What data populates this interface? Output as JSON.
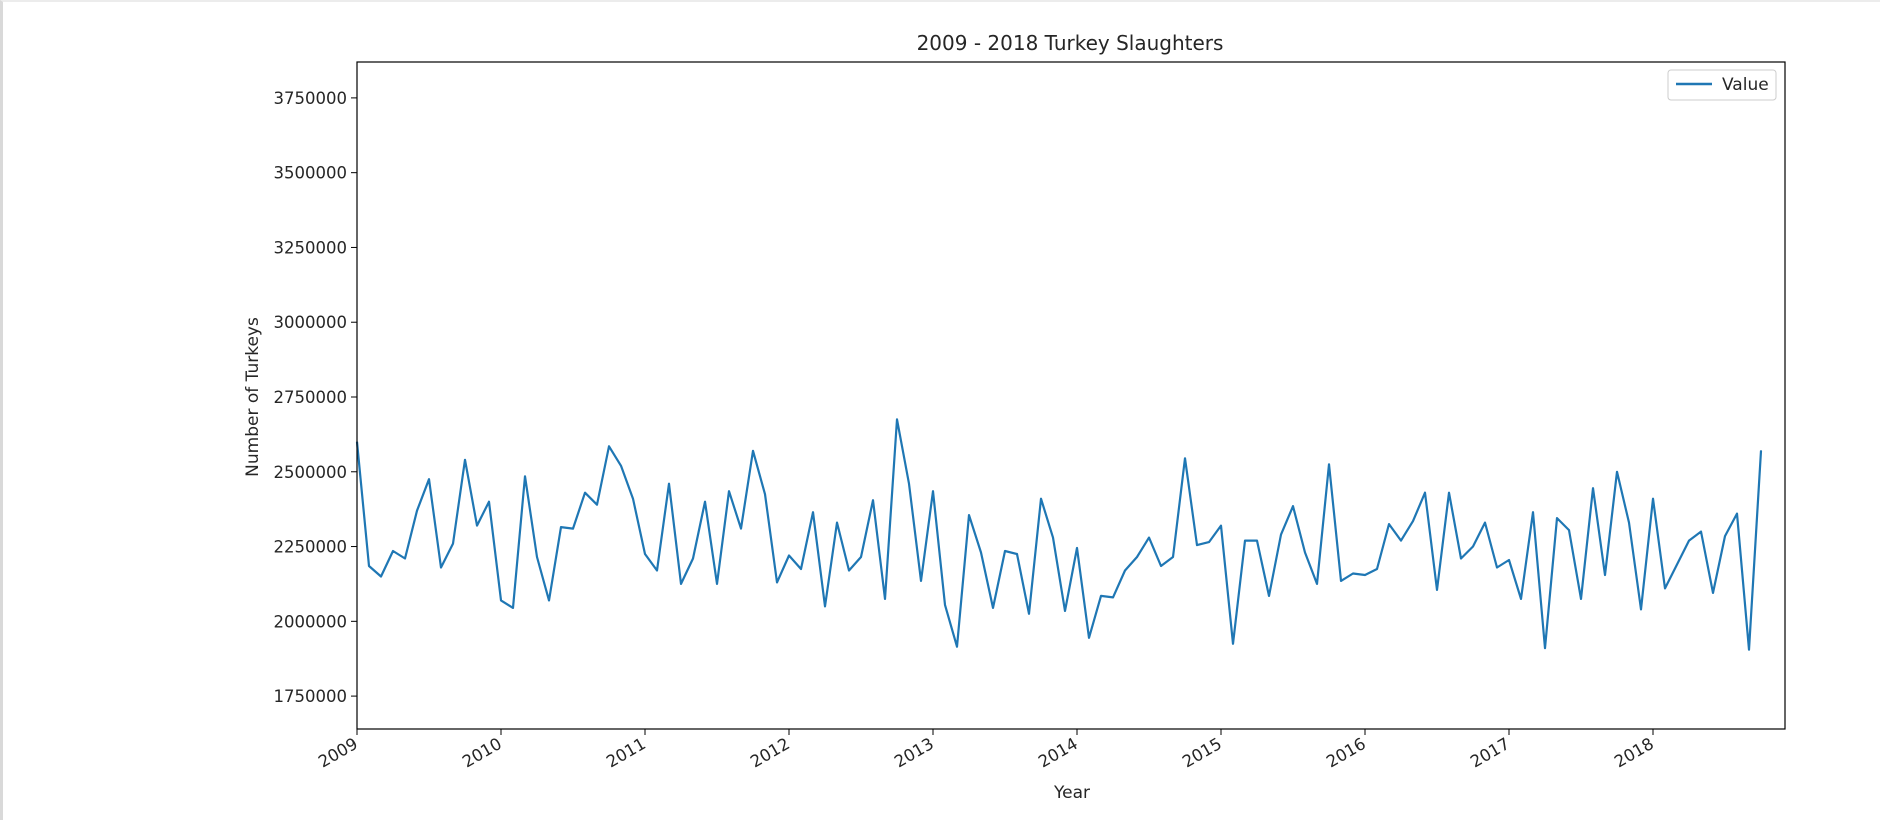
{
  "chart_data": {
    "type": "line",
    "title": "2009 - 2018 Turkey Slaughters",
    "xlabel": "Year",
    "ylabel": "Number of Turkeys",
    "legend": {
      "placement": "top-right",
      "entries": [
        "Value"
      ]
    },
    "grid": false,
    "x_ticks": [
      "2009",
      "2010",
      "2011",
      "2012",
      "2013",
      "2014",
      "2015",
      "2016",
      "2017",
      "2018"
    ],
    "y_ticks": [
      "1750000",
      "2000000",
      "2250000",
      "2500000",
      "2750000",
      "3000000",
      "3250000",
      "3500000",
      "3750000"
    ],
    "xlim": [
      "2009-01",
      "2018-12"
    ],
    "ylim": [
      1640000,
      3870000
    ],
    "line_color": "#1f77b4",
    "series": [
      {
        "name": "Value",
        "x": [
          "2009-01",
          "2009-02",
          "2009-03",
          "2009-04",
          "2009-05",
          "2009-06",
          "2009-07",
          "2009-08",
          "2009-09",
          "2009-10",
          "2009-11",
          "2009-12",
          "2010-01",
          "2010-02",
          "2010-03",
          "2010-04",
          "2010-05",
          "2010-06",
          "2010-07",
          "2010-08",
          "2010-09",
          "2010-10",
          "2010-11",
          "2010-12",
          "2011-01",
          "2011-02",
          "2011-03",
          "2011-04",
          "2011-05",
          "2011-06",
          "2011-07",
          "2011-08",
          "2011-09",
          "2011-10",
          "2011-11",
          "2011-12",
          "2012-01",
          "2012-02",
          "2012-03",
          "2012-04",
          "2012-05",
          "2012-06",
          "2012-07",
          "2012-08",
          "2012-09",
          "2012-10",
          "2012-11",
          "2012-12",
          "2013-01",
          "2013-02",
          "2013-03",
          "2013-04",
          "2013-05",
          "2013-06",
          "2013-07",
          "2013-08",
          "2013-09",
          "2013-10",
          "2013-11",
          "2013-12",
          "2014-01",
          "2014-02",
          "2014-03",
          "2014-04",
          "2014-05",
          "2014-06",
          "2014-07",
          "2014-08",
          "2014-09",
          "2014-10",
          "2014-11",
          "2014-12",
          "2015-01",
          "2015-02",
          "2015-03",
          "2015-04",
          "2015-05",
          "2015-06",
          "2015-07",
          "2015-08",
          "2015-09",
          "2015-10",
          "2015-11",
          "2015-12",
          "2016-01",
          "2016-02",
          "2016-03",
          "2016-04",
          "2016-05",
          "2016-06",
          "2016-07",
          "2016-08",
          "2016-09",
          "2016-10",
          "2016-11",
          "2016-12",
          "2017-01",
          "2017-02",
          "2017-03",
          "2017-04",
          "2017-05",
          "2017-06",
          "2017-07",
          "2017-08",
          "2017-09",
          "2017-10",
          "2017-11",
          "2017-12",
          "2018-01",
          "2018-02",
          "2018-03",
          "2018-04",
          "2018-05",
          "2018-06",
          "2018-07",
          "2018-08",
          "2018-09",
          "2018-10"
        ],
        "values": [
          2600000,
          2185000,
          2150000,
          2235000,
          2210000,
          2370000,
          2475000,
          2180000,
          2260000,
          2540000,
          2320000,
          2400000,
          2070000,
          2045000,
          2485000,
          2215000,
          2070000,
          2315000,
          2310000,
          2430000,
          2390000,
          2585000,
          2520000,
          2410000,
          2225000,
          2170000,
          2460000,
          2125000,
          2210000,
          2400000,
          2125000,
          2435000,
          2310000,
          2570000,
          2425000,
          2130000,
          2220000,
          2175000,
          2365000,
          2050000,
          2330000,
          2170000,
          2215000,
          2405000,
          2075000,
          2675000,
          2460000,
          2135000,
          2435000,
          2055000,
          1915000,
          2355000,
          2230000,
          2045000,
          2235000,
          2225000,
          2025000,
          2410000,
          2280000,
          2035000,
          2245000,
          1945000,
          2085000,
          2080000,
          2170000,
          2215000,
          2280000,
          2185000,
          2215000,
          2545000,
          2255000,
          2265000,
          2320000,
          1925000,
          2270000,
          2270000,
          2085000,
          2290000,
          2385000,
          2230000,
          2125000,
          2525000,
          2135000,
          2160000,
          2155000,
          2175000,
          2325000,
          2270000,
          2335000,
          2430000,
          2105000,
          2430000,
          2210000,
          2250000,
          2330000,
          2180000,
          2205000,
          2075000,
          2365000,
          1910000,
          2345000,
          2305000,
          2075000,
          2445000,
          2155000,
          2500000,
          2330000,
          2040000,
          2410000,
          2110000,
          2190000,
          2270000,
          2300000,
          2095000,
          2285000,
          2360000,
          1905000,
          2570000
        ]
      }
    ]
  }
}
